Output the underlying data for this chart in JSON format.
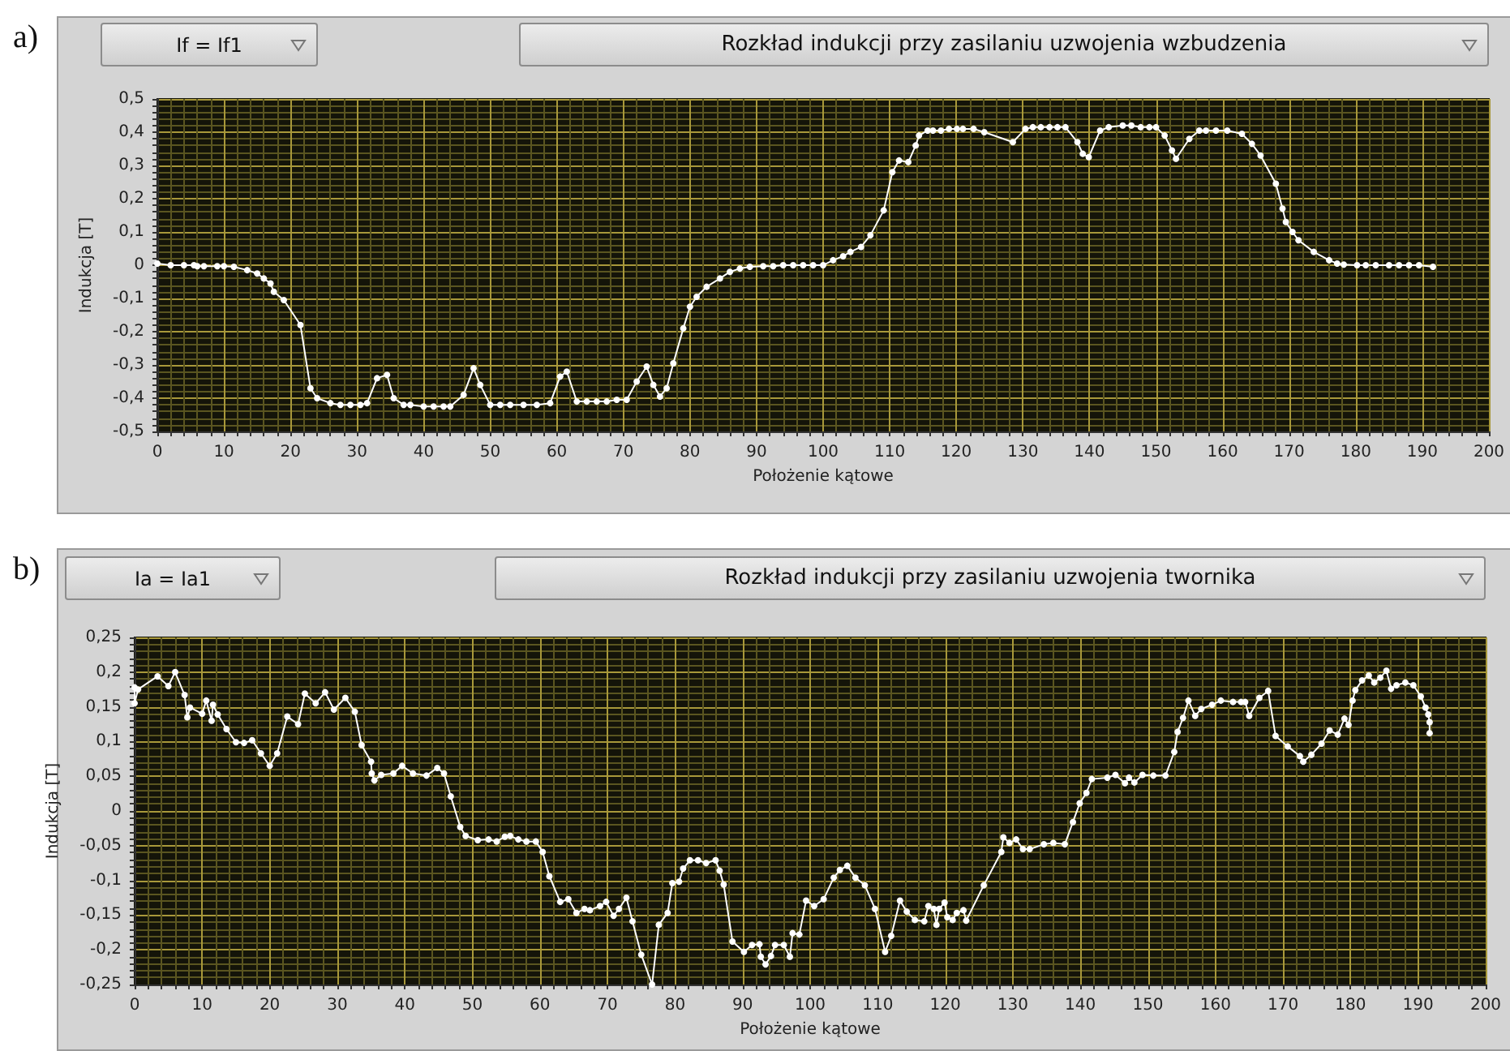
{
  "chart_data": [
    {
      "type": "line",
      "title": "Rozkład indukcji przy zasilaniu uzwojenia wzbudzenia",
      "subtitle": "If = If1",
      "annotations": [
        "a)"
      ],
      "xlabel": "Położenie kątowe",
      "ylabel": "Indukcja [T]",
      "x": [
        0,
        2,
        4,
        5.5,
        6,
        7,
        9,
        10,
        11.5,
        13.5,
        15,
        16,
        17,
        17.5,
        19,
        21.5,
        23,
        24,
        26,
        27.5,
        29,
        30.5,
        31.5,
        33,
        34.5,
        35.5,
        37,
        38,
        40,
        41.5,
        43,
        44,
        46,
        47.5,
        48.5,
        50,
        51.5,
        53,
        55,
        57,
        59,
        60.5,
        61.5,
        63,
        64.5,
        66,
        67.5,
        69,
        70.5,
        72,
        73.5,
        74.5,
        75.5,
        76.5,
        77.5,
        79,
        80,
        81,
        82.5,
        84.5,
        86,
        87.5,
        89,
        91,
        92.5,
        94,
        95.5,
        97,
        98.5,
        100,
        101.5,
        103,
        104.1,
        105.7,
        107.1,
        109.1,
        110.4,
        111.4,
        112.8,
        113.9,
        114.4,
        115.7,
        116.5,
        117.7,
        118.9,
        120.1,
        121,
        122.6,
        124.2,
        128.5,
        130.4,
        131.5,
        132.7,
        134,
        135.2,
        136.4,
        138.2,
        139,
        139.9,
        141.6,
        142.9,
        145,
        146.3,
        147.7,
        149,
        150,
        151.3,
        152.4,
        153,
        155,
        156.5,
        157.5,
        159,
        160.7,
        162.9,
        164.4,
        165.7,
        168,
        169,
        169.5,
        170.5,
        171.4,
        173.7,
        176,
        177.2,
        178.2,
        180.2,
        181.5,
        183,
        185,
        186.5,
        188,
        189.5,
        191.6
      ],
      "series": [
        {
          "color": "#ffffff",
          "values": [
            0.005,
            0,
            0,
            0,
            -0.003,
            -0.003,
            -0.003,
            -0.003,
            -0.005,
            -0.015,
            -0.025,
            -0.04,
            -0.055,
            -0.08,
            -0.105,
            -0.18,
            -0.37,
            -0.4,
            -0.415,
            -0.42,
            -0.42,
            -0.42,
            -0.415,
            -0.34,
            -0.33,
            -0.4,
            -0.42,
            -0.42,
            -0.425,
            -0.425,
            -0.425,
            -0.425,
            -0.39,
            -0.31,
            -0.36,
            -0.42,
            -0.42,
            -0.42,
            -0.42,
            -0.42,
            -0.415,
            -0.335,
            -0.32,
            -0.41,
            -0.41,
            -0.41,
            -0.41,
            -0.405,
            -0.405,
            -0.35,
            -0.305,
            -0.36,
            -0.395,
            -0.37,
            -0.295,
            -0.19,
            -0.125,
            -0.095,
            -0.065,
            -0.04,
            -0.02,
            -0.01,
            -0.005,
            -0.003,
            -0.003,
            0,
            0,
            0,
            0,
            0,
            0.015,
            0.027,
            0.04,
            0.055,
            0.09,
            0.165,
            0.28,
            0.315,
            0.31,
            0.36,
            0.39,
            0.405,
            0.405,
            0.405,
            0.41,
            0.41,
            0.41,
            0.41,
            0.4,
            0.37,
            0.41,
            0.415,
            0.415,
            0.415,
            0.415,
            0.415,
            0.37,
            0.335,
            0.325,
            0.405,
            0.415,
            0.42,
            0.42,
            0.415,
            0.415,
            0.415,
            0.39,
            0.345,
            0.32,
            0.38,
            0.405,
            0.405,
            0.405,
            0.405,
            0.395,
            0.365,
            0.33,
            0.245,
            0.17,
            0.13,
            0.1,
            0.075,
            0.04,
            0.015,
            0.005,
            0.002,
            0,
            0,
            0,
            0,
            0,
            0,
            0,
            -0.005
          ]
        }
      ],
      "xlim": [
        0,
        200
      ],
      "ylim": [
        -0.5,
        0.5
      ],
      "xticks": [
        0,
        {
          "value": 2,
          "label": null
        },
        {
          "value": 4,
          "label": null
        },
        {
          "value": 6,
          "label": null
        },
        {
          "value": 8,
          "label": null
        },
        10,
        {
          "value": 12,
          "label": null
        },
        {
          "value": 14,
          "label": null
        },
        {
          "value": 16,
          "label": null
        },
        {
          "value": 18,
          "label": null
        },
        20,
        {
          "value": 22,
          "label": null
        },
        {
          "value": 24,
          "label": null
        },
        {
          "value": 26,
          "label": null
        },
        {
          "value": 28,
          "label": null
        },
        30,
        {
          "value": 32,
          "label": null
        },
        {
          "value": 34,
          "label": null
        },
        {
          "value": 36,
          "label": null
        },
        {
          "value": 38,
          "label": null
        },
        40,
        {
          "value": 42,
          "label": null
        },
        {
          "value": 44,
          "label": null
        },
        {
          "value": 46,
          "label": null
        },
        {
          "value": 48,
          "label": null
        },
        50,
        {
          "value": 52,
          "label": null
        },
        {
          "value": 54,
          "label": null
        },
        {
          "value": 56,
          "label": null
        },
        {
          "value": 58,
          "label": null
        },
        60,
        {
          "value": 62,
          "label": null
        },
        {
          "value": 64,
          "label": null
        },
        {
          "value": 66,
          "label": null
        },
        {
          "value": 68,
          "label": null
        },
        70,
        {
          "value": 72,
          "label": null
        },
        {
          "value": 74,
          "label": null
        },
        {
          "value": 76,
          "label": null
        },
        {
          "value": 78,
          "label": null
        },
        80,
        {
          "value": 82,
          "label": null
        },
        {
          "value": 84,
          "label": null
        },
        {
          "value": 86,
          "label": null
        },
        {
          "value": 88,
          "label": null
        },
        90,
        {
          "value": 92,
          "label": null
        },
        {
          "value": 94,
          "label": null
        },
        {
          "value": 96,
          "label": null
        },
        {
          "value": 98,
          "label": null
        },
        100,
        {
          "value": 102,
          "label": null
        },
        {
          "value": 104,
          "label": null
        },
        {
          "value": 106,
          "label": null
        },
        {
          "value": 108,
          "label": null
        },
        110,
        {
          "value": 112,
          "label": null
        },
        {
          "value": 114,
          "label": null
        },
        {
          "value": 116,
          "label": null
        },
        {
          "value": 118,
          "label": null
        },
        120,
        {
          "value": 122,
          "label": null
        },
        {
          "value": 124,
          "label": null
        },
        {
          "value": 126,
          "label": null
        },
        {
          "value": 128,
          "label": null
        },
        130,
        {
          "value": 132,
          "label": null
        },
        {
          "value": 134,
          "label": null
        },
        {
          "value": 136,
          "label": null
        },
        {
          "value": 138,
          "label": null
        },
        140,
        {
          "value": 142,
          "label": null
        },
        {
          "value": 144,
          "label": null
        },
        {
          "value": 146,
          "label": null
        },
        {
          "value": 148,
          "label": null
        },
        150,
        {
          "value": 152,
          "label": null
        },
        {
          "value": 154,
          "label": null
        },
        {
          "value": 156,
          "label": null
        },
        {
          "value": 158,
          "label": null
        },
        160,
        {
          "value": 162,
          "label": null
        },
        {
          "value": 164,
          "label": null
        },
        {
          "value": 166,
          "label": null
        },
        {
          "value": 168,
          "label": null
        },
        170,
        {
          "value": 172,
          "label": null
        },
        {
          "value": 174,
          "label": null
        },
        {
          "value": 176,
          "label": null
        },
        {
          "value": 178,
          "label": null
        },
        180,
        {
          "value": 182,
          "label": null
        },
        {
          "value": 184,
          "label": null
        },
        {
          "value": 186,
          "label": null
        },
        {
          "value": 188,
          "label": null
        },
        190,
        {
          "value": 192,
          "label": null
        },
        {
          "value": 194,
          "label": null
        },
        {
          "value": 196,
          "label": null
        },
        {
          "value": 198,
          "label": null
        },
        200
      ],
      "yticks": [
        {
          "value": -0.5,
          "label": "-0,5"
        },
        {
          "value": -0.48,
          "label": null
        },
        {
          "value": -0.46,
          "label": null
        },
        {
          "value": -0.44,
          "label": null
        },
        {
          "value": -0.42,
          "label": null
        },
        {
          "value": -0.4,
          "label": "-0,4"
        },
        {
          "value": -0.38,
          "label": null
        },
        {
          "value": -0.36,
          "label": null
        },
        {
          "value": -0.34,
          "label": null
        },
        {
          "value": -0.32,
          "label": null
        },
        {
          "value": -0.3,
          "label": "-0,3"
        },
        {
          "value": -0.28,
          "label": null
        },
        {
          "value": -0.26,
          "label": null
        },
        {
          "value": -0.24,
          "label": null
        },
        {
          "value": -0.22,
          "label": null
        },
        {
          "value": -0.2,
          "label": "-0,2"
        },
        {
          "value": -0.18,
          "label": null
        },
        {
          "value": -0.16,
          "label": null
        },
        {
          "value": -0.14,
          "label": null
        },
        {
          "value": -0.12,
          "label": null
        },
        {
          "value": -0.1,
          "label": "-0,1"
        },
        {
          "value": -0.08,
          "label": null
        },
        {
          "value": -0.06,
          "label": null
        },
        {
          "value": -0.04,
          "label": null
        },
        {
          "value": -0.02,
          "label": null
        },
        0,
        {
          "value": 0.02,
          "label": null
        },
        {
          "value": 0.04,
          "label": null
        },
        {
          "value": 0.06,
          "label": null
        },
        {
          "value": 0.08,
          "label": null
        },
        {
          "value": 0.1,
          "label": "0,1"
        },
        {
          "value": 0.12,
          "label": null
        },
        {
          "value": 0.14,
          "label": null
        },
        {
          "value": 0.16,
          "label": null
        },
        {
          "value": 0.18,
          "label": null
        },
        {
          "value": 0.2,
          "label": "0,2"
        },
        {
          "value": 0.22,
          "label": null
        },
        {
          "value": 0.24,
          "label": null
        },
        {
          "value": 0.26,
          "label": null
        },
        {
          "value": 0.28,
          "label": null
        },
        {
          "value": 0.3,
          "label": "0,3"
        },
        {
          "value": 0.32,
          "label": null
        },
        {
          "value": 0.34,
          "label": null
        },
        {
          "value": 0.36,
          "label": null
        },
        {
          "value": 0.38,
          "label": null
        },
        {
          "value": 0.4,
          "label": "0,4"
        },
        {
          "value": 0.42,
          "label": null
        },
        {
          "value": 0.44,
          "label": null
        },
        {
          "value": 0.46,
          "label": null
        },
        {
          "value": 0.48,
          "label": null
        },
        {
          "value": 0.5,
          "label": "0,5"
        }
      ],
      "grid": true,
      "marker": "circle",
      "line_style": "solid"
    },
    {
      "type": "line",
      "title": "Rozkład indukcji przy zasilaniu uzwojenia twornika",
      "subtitle": "Ia = Ia1",
      "annotations": [
        "b)"
      ],
      "xlabel": "Położenie kątowe",
      "ylabel": "Indukcja [T]",
      "x": [
        0,
        0,
        0.5,
        3.4,
        5,
        6,
        7.4,
        7.8,
        8.2,
        10,
        10.6,
        11.4,
        11.6,
        12.3,
        13.6,
        15,
        16.2,
        17.4,
        18.7,
        20,
        21.1,
        22.6,
        24.2,
        25.2,
        26.8,
        28.2,
        29.5,
        31.2,
        32.6,
        33.6,
        35,
        35.1,
        35.5,
        36.5,
        38.3,
        39.6,
        41.2,
        43.2,
        44.8,
        45.8,
        46.8,
        48.2,
        49,
        50.8,
        52.4,
        53.6,
        54.8,
        55.6,
        56.8,
        58,
        59.4,
        60.4,
        61.4,
        63,
        64.2,
        65.4,
        66.6,
        67.4,
        68.9,
        69.8,
        70.9,
        71.7,
        72.8,
        73.7,
        75,
        76.6,
        77.6,
        78.9,
        79.6,
        80.6,
        81.2,
        82.2,
        83.4,
        84.6,
        86,
        86.6,
        87.2,
        88.5,
        90.2,
        91.4,
        92.5,
        92.7,
        93.4,
        94.2,
        94.8,
        96.1,
        97,
        97.4,
        98.4,
        99.4,
        100.6,
        102,
        103.5,
        104.4,
        105.5,
        106.7,
        108.1,
        109.6,
        111.1,
        112,
        113.3,
        114.3,
        115.5,
        116.9,
        117.5,
        118.3,
        118.7,
        119.1,
        119.9,
        120.3,
        121.1,
        121.7,
        122.7,
        123.1,
        125.7,
        128.3,
        128.6,
        129.5,
        130.5,
        131.5,
        132.5,
        134.6,
        136,
        137.7,
        138.9,
        139.9,
        140.9,
        141.7,
        144,
        145.2,
        146.6,
        147.2,
        148,
        149.2,
        150.8,
        152.6,
        153.9,
        154.4,
        155.2,
        156,
        157,
        157.9,
        159.5,
        160.8,
        162.6,
        163.8,
        164.4,
        165,
        166.5,
        167.8,
        168.9,
        170.7,
        172.5,
        173,
        174.2,
        175.7,
        176.9,
        178.1,
        179.1,
        179.7,
        180.3,
        180.7,
        181.7,
        182.7,
        183.5,
        184.4,
        185.3,
        186,
        186.8,
        188.1,
        189.3,
        190.4,
        191.1,
        191.5,
        191.7,
        191.7
      ],
      "series": [
        {
          "color": "#ffffff",
          "values": [
            0.178,
            0.155,
            0.175,
            0.194,
            0.18,
            0.2,
            0.167,
            0.135,
            0.149,
            0.14,
            0.159,
            0.13,
            0.153,
            0.139,
            0.118,
            0.099,
            0.098,
            0.102,
            0.083,
            0.065,
            0.083,
            0.136,
            0.125,
            0.169,
            0.155,
            0.171,
            0.146,
            0.163,
            0.143,
            0.095,
            0.071,
            0.054,
            0.044,
            0.052,
            0.054,
            0.065,
            0.054,
            0.051,
            0.062,
            0.054,
            0.021,
            -0.023,
            -0.036,
            -0.042,
            -0.041,
            -0.044,
            -0.037,
            -0.036,
            -0.041,
            -0.044,
            -0.044,
            -0.059,
            -0.094,
            -0.131,
            -0.127,
            -0.147,
            -0.141,
            -0.143,
            -0.137,
            -0.131,
            -0.151,
            -0.141,
            -0.125,
            -0.159,
            -0.207,
            -0.25,
            -0.164,
            -0.147,
            -0.104,
            -0.102,
            -0.083,
            -0.071,
            -0.071,
            -0.075,
            -0.071,
            -0.086,
            -0.106,
            -0.188,
            -0.203,
            -0.193,
            -0.192,
            -0.21,
            -0.221,
            -0.209,
            -0.193,
            -0.193,
            -0.21,
            -0.176,
            -0.178,
            -0.129,
            -0.137,
            -0.127,
            -0.096,
            -0.085,
            -0.079,
            -0.096,
            -0.107,
            -0.141,
            -0.203,
            -0.18,
            -0.129,
            -0.145,
            -0.157,
            -0.159,
            -0.137,
            -0.141,
            -0.164,
            -0.141,
            -0.132,
            -0.153,
            -0.157,
            -0.147,
            -0.143,
            -0.158,
            -0.107,
            -0.059,
            -0.038,
            -0.046,
            -0.041,
            -0.055,
            -0.055,
            -0.048,
            -0.046,
            -0.048,
            -0.016,
            0.011,
            0.026,
            0.046,
            0.048,
            0.052,
            0.04,
            0.048,
            0.041,
            0.052,
            0.051,
            0.051,
            0.085,
            0.114,
            0.134,
            0.159,
            0.137,
            0.147,
            0.153,
            0.159,
            0.157,
            0.157,
            0.157,
            0.137,
            0.163,
            0.173,
            0.108,
            0.093,
            0.079,
            0.071,
            0.081,
            0.097,
            0.116,
            0.11,
            0.133,
            0.124,
            0.159,
            0.174,
            0.188,
            0.195,
            0.185,
            0.192,
            0.202,
            0.176,
            0.181,
            0.185,
            0.181,
            0.165,
            0.149,
            0.139,
            0.128,
            0.112
          ]
        }
      ],
      "xlim": [
        0,
        200
      ],
      "ylim": [
        -0.25,
        0.25
      ],
      "xticks": [
        0,
        {
          "value": 2,
          "label": null
        },
        {
          "value": 4,
          "label": null
        },
        {
          "value": 6,
          "label": null
        },
        {
          "value": 8,
          "label": null
        },
        10,
        {
          "value": 12,
          "label": null
        },
        {
          "value": 14,
          "label": null
        },
        {
          "value": 16,
          "label": null
        },
        {
          "value": 18,
          "label": null
        },
        20,
        {
          "value": 22,
          "label": null
        },
        {
          "value": 24,
          "label": null
        },
        {
          "value": 26,
          "label": null
        },
        {
          "value": 28,
          "label": null
        },
        30,
        {
          "value": 32,
          "label": null
        },
        {
          "value": 34,
          "label": null
        },
        {
          "value": 36,
          "label": null
        },
        {
          "value": 38,
          "label": null
        },
        40,
        {
          "value": 42,
          "label": null
        },
        {
          "value": 44,
          "label": null
        },
        {
          "value": 46,
          "label": null
        },
        {
          "value": 48,
          "label": null
        },
        50,
        {
          "value": 52,
          "label": null
        },
        {
          "value": 54,
          "label": null
        },
        {
          "value": 56,
          "label": null
        },
        {
          "value": 58,
          "label": null
        },
        60,
        {
          "value": 62,
          "label": null
        },
        {
          "value": 64,
          "label": null
        },
        {
          "value": 66,
          "label": null
        },
        {
          "value": 68,
          "label": null
        },
        70,
        {
          "value": 72,
          "label": null
        },
        {
          "value": 74,
          "label": null
        },
        {
          "value": 76,
          "label": null
        },
        {
          "value": 78,
          "label": null
        },
        80,
        {
          "value": 82,
          "label": null
        },
        {
          "value": 84,
          "label": null
        },
        {
          "value": 86,
          "label": null
        },
        {
          "value": 88,
          "label": null
        },
        90,
        {
          "value": 92,
          "label": null
        },
        {
          "value": 94,
          "label": null
        },
        {
          "value": 96,
          "label": null
        },
        {
          "value": 98,
          "label": null
        },
        100,
        {
          "value": 102,
          "label": null
        },
        {
          "value": 104,
          "label": null
        },
        {
          "value": 106,
          "label": null
        },
        {
          "value": 108,
          "label": null
        },
        110,
        {
          "value": 112,
          "label": null
        },
        {
          "value": 114,
          "label": null
        },
        {
          "value": 116,
          "label": null
        },
        {
          "value": 118,
          "label": null
        },
        120,
        {
          "value": 122,
          "label": null
        },
        {
          "value": 124,
          "label": null
        },
        {
          "value": 126,
          "label": null
        },
        {
          "value": 128,
          "label": null
        },
        130,
        {
          "value": 132,
          "label": null
        },
        {
          "value": 134,
          "label": null
        },
        {
          "value": 136,
          "label": null
        },
        {
          "value": 138,
          "label": null
        },
        140,
        {
          "value": 142,
          "label": null
        },
        {
          "value": 144,
          "label": null
        },
        {
          "value": 146,
          "label": null
        },
        {
          "value": 148,
          "label": null
        },
        150,
        {
          "value": 152,
          "label": null
        },
        {
          "value": 154,
          "label": null
        },
        {
          "value": 156,
          "label": null
        },
        {
          "value": 158,
          "label": null
        },
        160,
        {
          "value": 162,
          "label": null
        },
        {
          "value": 164,
          "label": null
        },
        {
          "value": 166,
          "label": null
        },
        {
          "value": 168,
          "label": null
        },
        170,
        {
          "value": 172,
          "label": null
        },
        {
          "value": 174,
          "label": null
        },
        {
          "value": 176,
          "label": null
        },
        {
          "value": 178,
          "label": null
        },
        180,
        {
          "value": 182,
          "label": null
        },
        {
          "value": 184,
          "label": null
        },
        {
          "value": 186,
          "label": null
        },
        {
          "value": 188,
          "label": null
        },
        190,
        {
          "value": 192,
          "label": null
        },
        {
          "value": 194,
          "label": null
        },
        {
          "value": 196,
          "label": null
        },
        {
          "value": 198,
          "label": null
        },
        200
      ],
      "yticks": [
        {
          "value": -0.25,
          "label": "-0,25"
        },
        {
          "value": -0.24,
          "label": null
        },
        {
          "value": -0.23,
          "label": null
        },
        {
          "value": -0.22,
          "label": null
        },
        {
          "value": -0.21,
          "label": null
        },
        {
          "value": -0.2,
          "label": "-0,2"
        },
        {
          "value": -0.19,
          "label": null
        },
        {
          "value": -0.18,
          "label": null
        },
        {
          "value": -0.17,
          "label": null
        },
        {
          "value": -0.16,
          "label": null
        },
        {
          "value": -0.15,
          "label": "-0,15"
        },
        {
          "value": -0.14,
          "label": null
        },
        {
          "value": -0.13,
          "label": null
        },
        {
          "value": -0.12,
          "label": null
        },
        {
          "value": -0.11,
          "label": null
        },
        {
          "value": -0.1,
          "label": "-0,1"
        },
        {
          "value": -0.09,
          "label": null
        },
        {
          "value": -0.08,
          "label": null
        },
        {
          "value": -0.07,
          "label": null
        },
        {
          "value": -0.06,
          "label": null
        },
        {
          "value": -0.05,
          "label": "-0,05"
        },
        {
          "value": -0.04,
          "label": null
        },
        {
          "value": -0.03,
          "label": null
        },
        {
          "value": -0.02,
          "label": null
        },
        {
          "value": -0.01,
          "label": null
        },
        0,
        {
          "value": 0.01,
          "label": null
        },
        {
          "value": 0.02,
          "label": null
        },
        {
          "value": 0.03,
          "label": null
        },
        {
          "value": 0.04,
          "label": null
        },
        {
          "value": 0.05,
          "label": "0,05"
        },
        {
          "value": 0.06,
          "label": null
        },
        {
          "value": 0.07,
          "label": null
        },
        {
          "value": 0.08,
          "label": null
        },
        {
          "value": 0.09,
          "label": null
        },
        {
          "value": 0.1,
          "label": "0,1"
        },
        {
          "value": 0.11,
          "label": null
        },
        {
          "value": 0.12,
          "label": null
        },
        {
          "value": 0.13,
          "label": null
        },
        {
          "value": 0.14,
          "label": null
        },
        {
          "value": 0.15,
          "label": "0,15"
        },
        {
          "value": 0.16,
          "label": null
        },
        {
          "value": 0.17,
          "label": null
        },
        {
          "value": 0.18,
          "label": null
        },
        {
          "value": 0.19,
          "label": null
        },
        {
          "value": 0.2,
          "label": "0,2"
        },
        {
          "value": 0.21,
          "label": null
        },
        {
          "value": 0.22,
          "label": null
        },
        {
          "value": 0.23,
          "label": null
        },
        {
          "value": 0.24,
          "label": null
        },
        {
          "value": 0.25,
          "label": "0,25"
        }
      ],
      "grid": true,
      "marker": "circle",
      "line_style": "solid"
    }
  ]
}
